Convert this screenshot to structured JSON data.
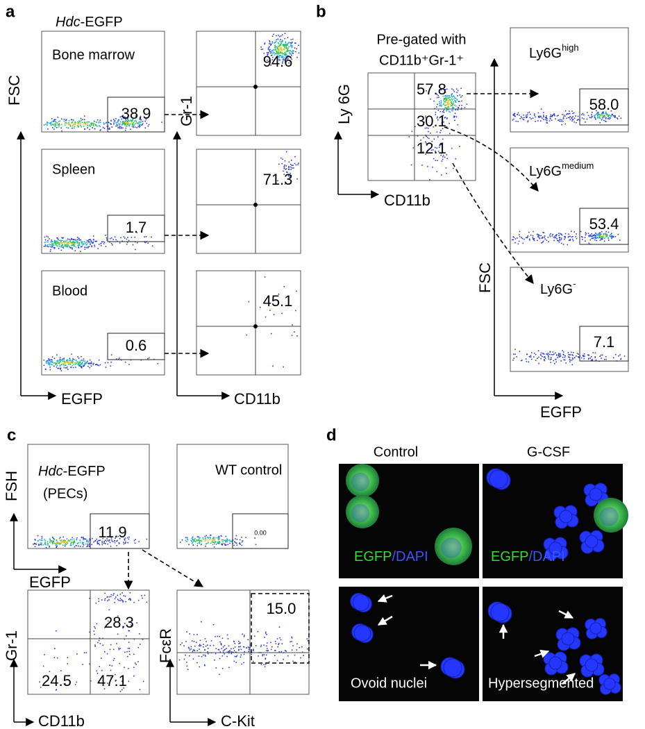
{
  "panels": {
    "a": {
      "label": "a",
      "title": [
        "Hdc",
        "-EGFP"
      ],
      "y_left": "FSC",
      "x_left": "EGFP",
      "y_right": "Gr-1",
      "x_right": "CD11b",
      "rows": [
        {
          "tissue": "Bone marrow",
          "gate": "38.9",
          "quadrant": "94.6"
        },
        {
          "tissue": "Spleen",
          "gate": "1.7",
          "quadrant": "71.3"
        },
        {
          "tissue": "Blood",
          "gate": "0.6",
          "quadrant": "45.1"
        }
      ]
    },
    "b": {
      "label": "b",
      "pregate": [
        "Pre-gated with",
        "CD11b⁺Gr-1⁺"
      ],
      "y_left": "Ly 6G",
      "x_left": "CD11b",
      "quadrants": [
        "57.8",
        "30.1",
        "12.1"
      ],
      "y_right": "FSC",
      "x_right": "EGFP",
      "rows": [
        {
          "name": [
            "Ly6G",
            "high"
          ],
          "gate": "58.0"
        },
        {
          "name": [
            "Ly6G",
            "medium"
          ],
          "gate": "53.4"
        },
        {
          "name": [
            "Ly6G",
            "-"
          ],
          "gate": "7.1"
        }
      ]
    },
    "c": {
      "label": "c",
      "sample": [
        "Hdc",
        "-EGFP",
        "(PECs)"
      ],
      "y_main": "FSH",
      "x_main": "EGFP",
      "main_gate": "11.9",
      "control": "WT control",
      "control_gate": "0.00",
      "y_cd": "Gr-1",
      "x_cd": "CD11b",
      "cd_quadrants": [
        "28.3",
        "24.5",
        "47.1"
      ],
      "y_kit": "FcεR",
      "x_kit": "C-Kit",
      "kit_gate": "15.0"
    },
    "d": {
      "label": "d",
      "columns": [
        "Control",
        "G-CSF"
      ],
      "stain": [
        "EGFP",
        "/DAPI"
      ],
      "captions": [
        "Ovoid nuclei",
        "Hypersegmented"
      ]
    }
  }
}
